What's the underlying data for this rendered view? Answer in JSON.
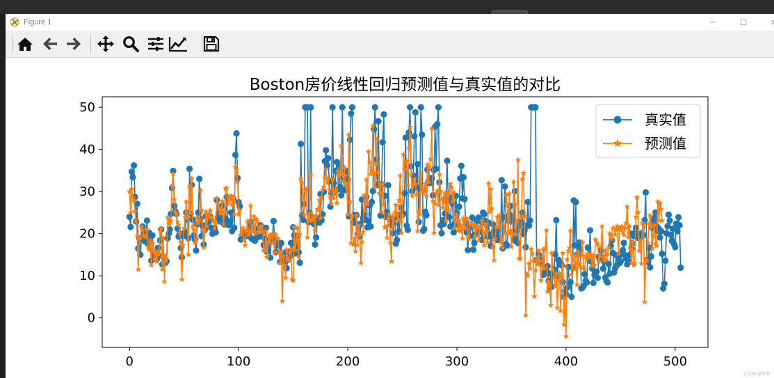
{
  "window": {
    "title": "Figure 1",
    "min_symbol": "─",
    "max_symbol": "☐",
    "close_symbol": "✕"
  },
  "toolbar": {
    "buttons": [
      {
        "name": "home-icon"
      },
      {
        "name": "back-arrow-icon"
      },
      {
        "name": "forward-arrow-icon"
      },
      {
        "name": "pan-icon"
      },
      {
        "name": "zoom-icon"
      },
      {
        "name": "subplots-config-icon"
      },
      {
        "name": "edit-axis-icon"
      },
      {
        "name": "save-icon"
      }
    ]
  },
  "corner_watermark": "CSDN @听雨",
  "chart_data": {
    "type": "line",
    "title": "Boston房价线性回归预测值与真实值的对比",
    "xlabel": "",
    "ylabel": "",
    "xlim": [
      -25,
      530
    ],
    "ylim": [
      -7,
      52.5
    ],
    "xticks": [
      0,
      100,
      200,
      300,
      400,
      500
    ],
    "yticks": [
      0,
      10,
      20,
      30,
      40,
      50
    ],
    "grid": false,
    "legend_position": "top-right",
    "colors": {
      "true": "#1f77b4",
      "pred": "#ff7f0e"
    },
    "series": [
      {
        "name": "真实值",
        "marker": "circle",
        "values": [
          24.0,
          21.6,
          34.7,
          33.4,
          36.2,
          28.7,
          22.9,
          27.1,
          16.5,
          18.9,
          15.0,
          18.9,
          21.7,
          20.4,
          18.2,
          19.9,
          23.1,
          17.5,
          20.2,
          18.2,
          13.6,
          19.6,
          15.2,
          14.5,
          15.6,
          13.9,
          16.6,
          14.8,
          18.4,
          21.0,
          12.7,
          14.5,
          13.2,
          13.1,
          13.5,
          18.9,
          20.0,
          21.0,
          24.7,
          30.8,
          34.9,
          26.6,
          25.3,
          24.7,
          21.2,
          19.3,
          20.0,
          16.6,
          14.4,
          19.4,
          19.7,
          20.5,
          25.0,
          23.4,
          18.9,
          35.4,
          24.7,
          31.6,
          23.3,
          19.6,
          18.7,
          16.0,
          22.2,
          25.0,
          33.0,
          23.5,
          19.4,
          22.0,
          17.4,
          20.9,
          24.2,
          21.7,
          22.8,
          23.4,
          24.1,
          21.4,
          20.0,
          20.8,
          21.2,
          20.3,
          28.0,
          23.9,
          24.8,
          22.9,
          23.9,
          26.6,
          22.5,
          22.2,
          23.6,
          28.7,
          22.6,
          22.0,
          22.9,
          25.0,
          20.6,
          28.4,
          21.4,
          38.7,
          43.8,
          33.2,
          27.5,
          26.5,
          18.6,
          19.3,
          20.1,
          19.5,
          19.5,
          20.4,
          19.8,
          19.4,
          21.7,
          22.8,
          18.8,
          18.7,
          18.5,
          18.3,
          21.2,
          19.2,
          20.4,
          19.3,
          22.0,
          20.3,
          20.5,
          17.3,
          18.8,
          21.4,
          15.7,
          16.2,
          18.0,
          14.3,
          19.2,
          19.6,
          23.0,
          18.4,
          15.6,
          18.1,
          17.4,
          17.1,
          13.3,
          17.8,
          14.0,
          14.4,
          13.4,
          15.6,
          11.8,
          13.8,
          15.6,
          14.6,
          17.8,
          15.4,
          21.5,
          19.6,
          15.3,
          19.4,
          17.0,
          15.6,
          13.1,
          41.3,
          24.3,
          23.3,
          27.0,
          50.0,
          50.0,
          50.0,
          22.7,
          25.0,
          50.0,
          23.8,
          23.8,
          22.3,
          17.4,
          19.1,
          23.1,
          23.6,
          22.6,
          29.4,
          23.2,
          24.6,
          29.9,
          37.2,
          39.8,
          36.2,
          37.9,
          32.5,
          26.4,
          29.6,
          50.0,
          32.0,
          29.8,
          34.9,
          37.0,
          30.5,
          36.4,
          31.1,
          29.1,
          50.0,
          33.3,
          30.3,
          34.6,
          34.9,
          32.9,
          24.1,
          42.3,
          48.5,
          50.0,
          22.6,
          24.4,
          22.5,
          24.4,
          20.0,
          21.7,
          19.3,
          22.4,
          28.1,
          23.7,
          25.0,
          23.3,
          28.7,
          21.5,
          23.0,
          26.7,
          21.7,
          27.5,
          30.1,
          44.8,
          50.0,
          37.6,
          31.6,
          46.7,
          31.5,
          24.3,
          31.7,
          41.7,
          48.3,
          29.0,
          24.0,
          25.1,
          31.5,
          23.7,
          23.3,
          22.0,
          20.1,
          22.2,
          23.7,
          17.6,
          18.5,
          24.3,
          20.5,
          24.5,
          26.2,
          24.4,
          24.8,
          29.6,
          42.8,
          21.9,
          20.9,
          44.0,
          50.0,
          36.0,
          30.1,
          33.8,
          43.1,
          48.8,
          31.0,
          36.5,
          22.8,
          30.7,
          50.0,
          43.5,
          20.7,
          21.1,
          25.2,
          24.4,
          35.2,
          32.4,
          32.0,
          33.2,
          33.1,
          29.1,
          35.1,
          45.4,
          35.4,
          46.0,
          50.0,
          32.2,
          22.0,
          20.1,
          23.2,
          22.3,
          24.8,
          28.5,
          37.3,
          27.9,
          23.9,
          21.7,
          28.6,
          27.1,
          20.3,
          22.5,
          29.0,
          24.8,
          22.0,
          26.4,
          33.1,
          36.1,
          28.4,
          33.4,
          28.2,
          22.8,
          20.3,
          16.1,
          22.1,
          19.4,
          21.6,
          23.8,
          16.2,
          17.8,
          19.8,
          23.1,
          21.0,
          23.8,
          23.1,
          20.4,
          18.5,
          25.0,
          24.6,
          23.0,
          22.2,
          19.3,
          22.6,
          19.8,
          17.1,
          19.4,
          22.2,
          20.7,
          21.1,
          19.5,
          18.5,
          20.6,
          19.0,
          18.7,
          32.7,
          16.5,
          23.9,
          31.2,
          17.5,
          17.2,
          23.1,
          24.5,
          26.6,
          22.9,
          24.1,
          18.6,
          30.1,
          18.2,
          20.6,
          17.8,
          21.7,
          22.7,
          22.6,
          25.0,
          19.9,
          20.8,
          16.8,
          21.9,
          27.5,
          21.9,
          23.1,
          50.0,
          50.0,
          50.0,
          50.0,
          50.0,
          13.8,
          13.8,
          15.0,
          13.9,
          13.3,
          13.1,
          10.2,
          10.4,
          10.9,
          11.3,
          12.3,
          8.8,
          7.2,
          10.5,
          7.4,
          10.2,
          11.5,
          15.1,
          23.2,
          9.7,
          13.8,
          12.7,
          13.1,
          12.5,
          8.5,
          5.0,
          6.3,
          5.6,
          7.2,
          12.1,
          8.3,
          8.5,
          5.0,
          11.9,
          27.9,
          17.2,
          27.5,
          15.0,
          17.2,
          17.9,
          16.3,
          7.0,
          7.2,
          7.5,
          10.4,
          8.8,
          8.4,
          16.7,
          14.2,
          20.8,
          13.4,
          11.7,
          8.3,
          10.2,
          10.9,
          11.0,
          9.5,
          14.5,
          14.1,
          16.1,
          14.3,
          11.7,
          13.4,
          9.6,
          8.7,
          8.4,
          12.8,
          10.5,
          17.1,
          18.4,
          15.4,
          10.8,
          11.8,
          14.9,
          12.6,
          14.1,
          13.0,
          13.4,
          15.2,
          16.1,
          17.8,
          14.9,
          14.1,
          12.7,
          13.5,
          14.9,
          20.0,
          16.4,
          17.7,
          19.5,
          20.2,
          21.4,
          19.9,
          19.0,
          19.1,
          19.1,
          20.1,
          19.9,
          19.6,
          23.2,
          29.8,
          13.8,
          13.3,
          16.7,
          12.0,
          14.6,
          21.4,
          23.0,
          23.7,
          25.0,
          21.8,
          20.6,
          21.2,
          19.1,
          20.6,
          15.2,
          7.0,
          8.1,
          13.6,
          20.1,
          21.8,
          24.5,
          23.1,
          19.7,
          18.3,
          21.2,
          17.5,
          16.8,
          22.4,
          20.6,
          23.9,
          22.0,
          11.9
        ]
      },
      {
        "name": "预测值",
        "marker": "star",
        "values": [
          30.0,
          25.0,
          30.6,
          28.6,
          27.9,
          25.3,
          23.0,
          19.5,
          11.5,
          18.9,
          19.0,
          21.6,
          20.9,
          19.6,
          19.3,
          19.3,
          21.0,
          16.9,
          16.2,
          18.4,
          12.5,
          17.7,
          16.0,
          14.0,
          15.6,
          13.4,
          15.7,
          15.0,
          20.6,
          21.2,
          11.5,
          19.0,
          8.6,
          14.7,
          13.6,
          23.8,
          22.3,
          23.1,
          22.9,
          31.4,
          34.2,
          28.1,
          25.2,
          24.7,
          22.8,
          22.1,
          20.2,
          18.0,
          9.1,
          17.2,
          21.3,
          23.9,
          27.6,
          24.1,
          15.0,
          31.2,
          24.9,
          33.1,
          21.8,
          21.0,
          17.8,
          18.3,
          23.9,
          22.5,
          23.3,
          30.3,
          25.5,
          21.0,
          16.7,
          20.8,
          25.2,
          21.8,
          24.6,
          24.0,
          25.5,
          23.9,
          22.9,
          23.3,
          21.2,
          22.4,
          28.4,
          27.0,
          26.0,
          25.0,
          24.8,
          27.8,
          22.2,
          25.2,
          30.7,
          30.8,
          27.0,
          27.8,
          28.7,
          29.0,
          26.8,
          28.6,
          24.6,
          35.8,
          35.2,
          32.3,
          24.6,
          25.6,
          19.8,
          20.3,
          21.4,
          18.5,
          17.2,
          20.7,
          22.9,
          19.7,
          20.4,
          26.6,
          20.7,
          20.7,
          24.1,
          20.0,
          23.5,
          23.0,
          20.4,
          20.3,
          21.6,
          21.8,
          20.6,
          16.0,
          16.1,
          20.6,
          14.4,
          17.9,
          19.6,
          18.0,
          19.2,
          20.0,
          17.9,
          15.5,
          19.8,
          18.9,
          18.8,
          15.6,
          13.0,
          15.6,
          4.0,
          14.6,
          12.3,
          9.5,
          16.2,
          14.1,
          13.8,
          15.6,
          16.4,
          9.1,
          8.9,
          21.5,
          16.1,
          18.3,
          21.4,
          14.5,
          19.9,
          33.0,
          32.1,
          28.9,
          24.5,
          30.3,
          30.6,
          19.1,
          24.6,
          23.1,
          34.0,
          23.4,
          23.2,
          24.1,
          20.6,
          24.3,
          25.7,
          25.8,
          27.9,
          23.7,
          28.6,
          30.4,
          31.1,
          33.3,
          35.4,
          32.1,
          33.1,
          30.5,
          28.6,
          27.1,
          32.9,
          28.4,
          29.8,
          30.3,
          27.3,
          34.8,
          33.5,
          34.5,
          40.9,
          34.2,
          32.5,
          35.7,
          31.7,
          31.2,
          24.6,
          43.5,
          27.6,
          17.7,
          24.3,
          17.4,
          18.8,
          15.8,
          24.3,
          17.3,
          21.9,
          19.8,
          13.0,
          18.1,
          20.4,
          29.1,
          25.4,
          32.8,
          27.0,
          39.5,
          37.0,
          34.2,
          35.0,
          45.6,
          34.4,
          31.0,
          36.6,
          42.5,
          34.5,
          29.6,
          31.7,
          25.1,
          31.8,
          27.1,
          21.5,
          21.7,
          19.0,
          23.5,
          24.6,
          17.8,
          13.4,
          24.1,
          21.8,
          25.0,
          26.8,
          24.4,
          23.1,
          27.9,
          33.8,
          20.2,
          24.3,
          38.8,
          35.3,
          37.1,
          37.2,
          31.5,
          40.3,
          45.3,
          34.1,
          29.0,
          31.8,
          32.9,
          31.7,
          29.3,
          20.6,
          25.3,
          24.6,
          34.1,
          31.0,
          29.7,
          30.3,
          31.8,
          28.9,
          36.4,
          32.2,
          35.8,
          37.7,
          44.9,
          27.8,
          20.2,
          27.2,
          29.6,
          30.2,
          26.8,
          34.1,
          30.1,
          28.3,
          26.2,
          27.5,
          29.7,
          23.1,
          29.1,
          25.6,
          29.9,
          31.8,
          31.0,
          27.6,
          29.8,
          21.4,
          22.9,
          24.5,
          20.8,
          23.1,
          20.6,
          21.9,
          18.9,
          23.6,
          21.2,
          23.5,
          23.6,
          19.4,
          18.8,
          22.5,
          22.1,
          22.4,
          21.7,
          21.9,
          19.4,
          21.3,
          21.8,
          18.4,
          21.4,
          21.5,
          23.1,
          20.4,
          17.2,
          22.3,
          20.4,
          18.0,
          31.9,
          25.2,
          30.6,
          26.0,
          16.8,
          13.7,
          18.8,
          21.7,
          24.0,
          21.8,
          24.3,
          17.9,
          19.0,
          16.6,
          22.3,
          20.2,
          29.3,
          26.9,
          20.1,
          29.5,
          20.8,
          16.9,
          20.0,
          32.3,
          27.0,
          19.9,
          23.3,
          37.5,
          14.1,
          14.1,
          24.1,
          32.9,
          34.4,
          24.2,
          0.6,
          10.5,
          10.0,
          12.9,
          11.7,
          16.4,
          15.3,
          13.6,
          5.1,
          11.3,
          14.2,
          12.7,
          16.0,
          13.6,
          8.9,
          12.4,
          16.2,
          11.7,
          16.6,
          20.8,
          6.3,
          8.6,
          7.6,
          3.0,
          15.4,
          11.4,
          9.6,
          7.5,
          10.5,
          2.4,
          9.0,
          10.6,
          1.7,
          9.9,
          15.4,
          -1.6,
          4.7,
          -4.4,
          13.9,
          15.9,
          16.6,
          20.7,
          10.3,
          12.5,
          14.9,
          11.6,
          14.8,
          7.9,
          15.7,
          12.8,
          12.2,
          14.9,
          18.0,
          11.9,
          11.5,
          14.7,
          13.9,
          15.3,
          14.6,
          15.2,
          14.4,
          12.3,
          14.9,
          12.6,
          18.6,
          17.9,
          17.5,
          13.4,
          14.6,
          16.8,
          21.7,
          14.5,
          13.6,
          16.0,
          13.8,
          15.1,
          16.7,
          20.0,
          19.8,
          18.7,
          21.3,
          21.3,
          19.8,
          20.9,
          21.8,
          15.2,
          21.2,
          21.2,
          21.7,
          20.4,
          19.7,
          21.4,
          22.5,
          26.4,
          19.2,
          21.8,
          16.4,
          13.1,
          18.0,
          12.5,
          12.9,
          24.0,
          28.6,
          25.1,
          15.9,
          18.3,
          12.9,
          22.5,
          22.1,
          3.8,
          13.6,
          13.6,
          17.8,
          22.4,
          24.3,
          21.7,
          16.5,
          19.5,
          22.1,
          17.6,
          17.1,
          27.6,
          23.2,
          27.3,
          25.8,
          23.1
        ]
      }
    ]
  }
}
